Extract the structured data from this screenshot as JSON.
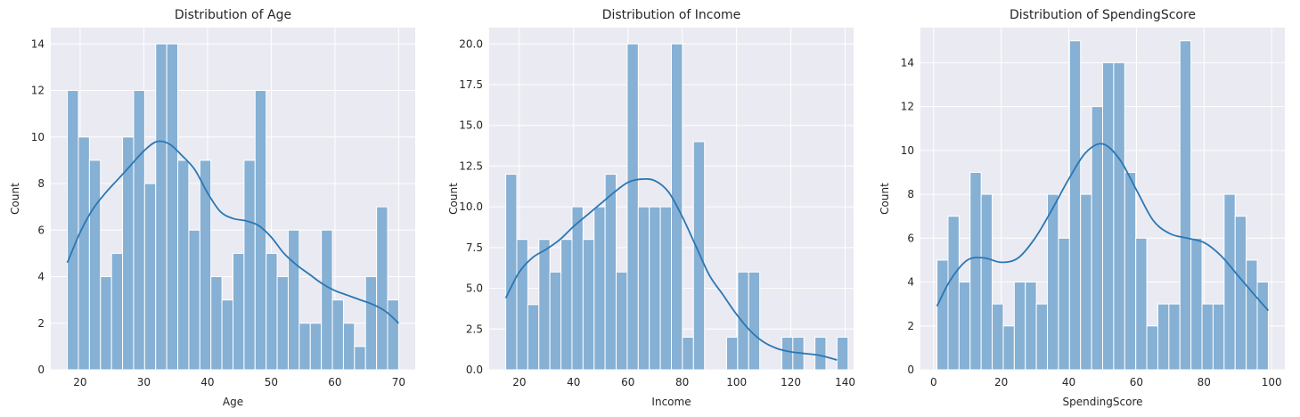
{
  "chart_data": [
    {
      "type": "bar",
      "title": "Distribution of Age",
      "xlabel": "Age",
      "ylabel": "Count",
      "xlim": [
        15.4,
        72.6
      ],
      "ylim": [
        0,
        14.7
      ],
      "xticks": [
        20,
        30,
        40,
        50,
        60,
        70
      ],
      "yticks": [
        0,
        2,
        4,
        6,
        8,
        10,
        12,
        14
      ],
      "ytick_labels": [
        "0",
        "2",
        "4",
        "6",
        "8",
        "10",
        "12",
        "14"
      ],
      "grid": true,
      "bin_start": 18,
      "bin_width": 1.7333,
      "values": [
        12,
        10,
        9,
        4,
        5,
        10,
        12,
        8,
        14,
        14,
        9,
        6,
        9,
        4,
        3,
        5,
        9,
        12,
        5,
        4,
        6,
        2,
        2,
        6,
        3,
        2,
        1,
        4,
        7,
        3
      ],
      "kde": {
        "x": [
          18,
          20,
          22,
          24,
          26,
          28,
          30,
          32,
          34,
          36,
          38,
          40,
          42,
          44,
          46,
          48,
          50,
          52,
          54,
          56,
          58,
          60,
          62,
          64,
          66,
          68,
          70
        ],
        "y": [
          4.6,
          5.9,
          6.9,
          7.6,
          8.2,
          8.8,
          9.4,
          9.8,
          9.7,
          9.2,
          8.6,
          7.6,
          6.8,
          6.5,
          6.4,
          6.2,
          5.7,
          5.0,
          4.5,
          4.1,
          3.7,
          3.4,
          3.2,
          3.0,
          2.8,
          2.5,
          2.0
        ]
      }
    },
    {
      "type": "bar",
      "title": "Distribution of Income",
      "xlabel": "Income",
      "ylabel": "Count",
      "xlim": [
        8.9,
        143.1
      ],
      "ylim": [
        0,
        21.0
      ],
      "xticks": [
        20,
        40,
        60,
        80,
        100,
        120,
        140
      ],
      "yticks": [
        0,
        2.5,
        5.0,
        7.5,
        10.0,
        12.5,
        15.0,
        17.5,
        20.0
      ],
      "ytick_labels": [
        "0.0",
        "2.5",
        "5.0",
        "7.5",
        "10.0",
        "12.5",
        "15.0",
        "17.5",
        "20.0"
      ],
      "grid": true,
      "bin_start": 15,
      "bin_width": 4.0667,
      "values": [
        12,
        8,
        4,
        8,
        6,
        8,
        10,
        8,
        10,
        12,
        6,
        20,
        10,
        10,
        10,
        20,
        2,
        14,
        0,
        0,
        2,
        6,
        6,
        0,
        0,
        2,
        2,
        0,
        2,
        0,
        2
      ],
      "kde": {
        "x": [
          15,
          20,
          25,
          30,
          35,
          40,
          45,
          50,
          55,
          60,
          65,
          70,
          75,
          80,
          85,
          90,
          95,
          100,
          105,
          110,
          115,
          120,
          125,
          130,
          135,
          137
        ],
        "y": [
          4.4,
          6.0,
          6.9,
          7.4,
          8.0,
          8.8,
          9.5,
          10.2,
          10.9,
          11.5,
          11.7,
          11.6,
          10.9,
          9.4,
          7.6,
          5.8,
          4.6,
          3.4,
          2.4,
          1.7,
          1.3,
          1.1,
          1.0,
          0.9,
          0.7,
          0.6
        ]
      }
    },
    {
      "type": "bar",
      "title": "Distribution of SpendingScore",
      "xlabel": "SpendingScore",
      "ylabel": "Count",
      "xlim": [
        -3.9,
        103.9
      ],
      "ylim": [
        0,
        15.6
      ],
      "xticks": [
        0,
        20,
        40,
        60,
        80,
        100
      ],
      "yticks": [
        0,
        2,
        4,
        6,
        8,
        10,
        12,
        14
      ],
      "ytick_labels": [
        "0",
        "2",
        "4",
        "6",
        "8",
        "10",
        "12",
        "14"
      ],
      "grid": true,
      "bin_start": 1,
      "bin_width": 3.2667,
      "values": [
        5,
        7,
        4,
        9,
        8,
        3,
        2,
        4,
        4,
        3,
        8,
        6,
        15,
        8,
        12,
        14,
        14,
        9,
        6,
        2,
        3,
        3,
        15,
        6,
        3,
        3,
        8,
        7,
        5,
        4
      ],
      "kde": {
        "x": [
          1,
          5,
          10,
          15,
          20,
          25,
          30,
          35,
          40,
          45,
          50,
          55,
          60,
          65,
          70,
          75,
          80,
          85,
          90,
          95,
          99
        ],
        "y": [
          2.9,
          4.1,
          5.0,
          5.1,
          4.9,
          5.1,
          6.0,
          7.3,
          8.7,
          9.9,
          10.3,
          9.6,
          8.2,
          6.8,
          6.2,
          6.0,
          5.8,
          5.2,
          4.3,
          3.4,
          2.7
        ]
      }
    }
  ]
}
